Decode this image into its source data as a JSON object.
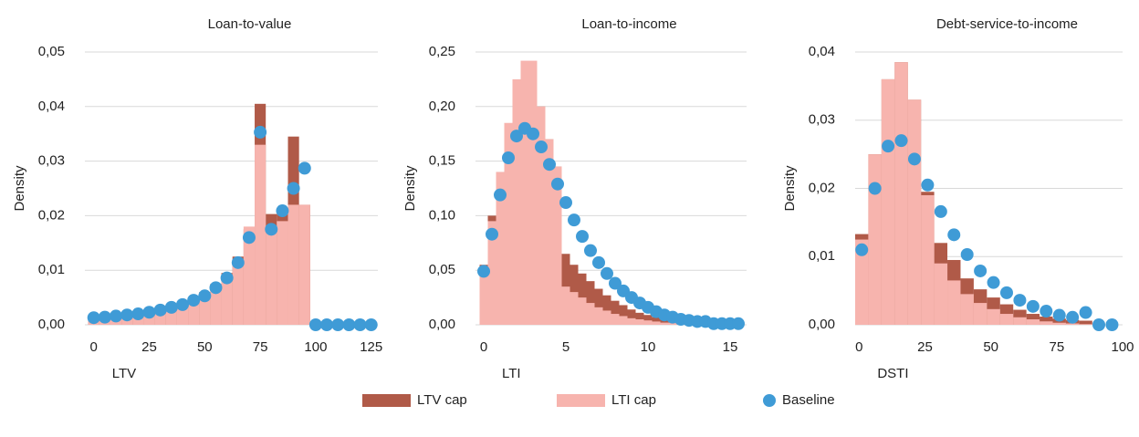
{
  "chart_data": [
    {
      "type": "histogram",
      "title": "Loan-to-value",
      "xlabel": "LTV",
      "ylabel": "Density",
      "bins": [
        -2.5,
        2.5,
        7.5,
        12.5,
        17.5,
        22.5,
        27.5,
        32.5,
        37.5,
        42.5,
        47.5,
        52.5,
        57.5,
        62.5,
        67.5,
        72.5,
        77.5,
        82.5,
        87.5,
        92.5,
        97.5,
        102.5,
        107.5,
        112.5,
        117.5,
        122.5,
        127.5
      ],
      "xlim": [
        -4,
        128
      ],
      "xticks": [
        0,
        25,
        50,
        75,
        100,
        125
      ],
      "ylim": [
        0,
        0.05
      ],
      "yticks": [
        {
          "value": 0,
          "label": "0,00"
        },
        {
          "value": 0.01,
          "label": "0,01"
        },
        {
          "value": 0.02,
          "label": "0,02"
        },
        {
          "value": 0.03,
          "label": "0,03"
        },
        {
          "value": 0.04,
          "label": "0,04"
        },
        {
          "value": 0.05,
          "label": "0,05"
        }
      ],
      "grid": true,
      "series": [
        {
          "name": "LTV cap",
          "color": "#b05a48",
          "values": [
            0.0013,
            0.0014,
            0.0016,
            0.0018,
            0.002,
            0.0023,
            0.0027,
            0.0033,
            0.004,
            0.005,
            0.006,
            0.0075,
            0.0095,
            0.0125,
            0.0175,
            0.0405,
            0.0203,
            0.021,
            0.0345,
            0.022,
            0,
            0,
            0,
            0,
            0,
            0
          ]
        },
        {
          "name": "LTI cap",
          "color": "#f7b4ae",
          "values": [
            0.0013,
            0.0014,
            0.0016,
            0.0018,
            0.002,
            0.0023,
            0.0027,
            0.0031,
            0.0035,
            0.0045,
            0.0058,
            0.0072,
            0.009,
            0.012,
            0.018,
            0.033,
            0.0175,
            0.019,
            0.022,
            0.022,
            0,
            0,
            0,
            0,
            0,
            0
          ]
        },
        {
          "name": "Baseline",
          "color": "#3f9bd6",
          "type": "scatter",
          "x": [
            0,
            5,
            10,
            15,
            20,
            25,
            30,
            35,
            40,
            45,
            50,
            55,
            60,
            65,
            70,
            75,
            80,
            85,
            90,
            95,
            100,
            105,
            110,
            115,
            120,
            125
          ],
          "values": [
            0.0013,
            0.0014,
            0.0016,
            0.0018,
            0.002,
            0.0023,
            0.0027,
            0.0032,
            0.0037,
            0.0045,
            0.0053,
            0.0068,
            0.0086,
            0.0114,
            0.016,
            0.0353,
            0.0175,
            0.0209,
            0.025,
            0.0287,
            0,
            0,
            0,
            0,
            0,
            0
          ]
        }
      ]
    },
    {
      "type": "histogram",
      "title": "Loan-to-income",
      "xlabel": "LTI",
      "ylabel": "Density",
      "bins": [
        -0.25,
        0.25,
        0.75,
        1.25,
        1.75,
        2.25,
        2.75,
        3.25,
        3.75,
        4.25,
        4.75,
        5.25,
        5.75,
        6.25,
        6.75,
        7.25,
        7.75,
        8.25,
        8.75,
        9.25,
        9.75,
        10.25,
        10.75,
        11.25,
        11.75,
        12.25,
        12.75,
        13.25,
        13.75,
        14.25,
        14.75,
        15.25,
        15.75
      ],
      "xlim": [
        -0.5,
        16
      ],
      "xticks": [
        0,
        5,
        10,
        15
      ],
      "ylim": [
        0,
        0.25
      ],
      "yticks": [
        {
          "value": 0,
          "label": "0,00"
        },
        {
          "value": 0.05,
          "label": "0,05"
        },
        {
          "value": 0.1,
          "label": "0,10"
        },
        {
          "value": 0.15,
          "label": "0,15"
        },
        {
          "value": 0.2,
          "label": "0,20"
        },
        {
          "value": 0.25,
          "label": "0,25"
        }
      ],
      "grid": true,
      "series": [
        {
          "name": "LTV cap",
          "color": "#b05a48",
          "values": [
            0.055,
            0.1,
            0.14,
            0.17,
            0.22,
            0.235,
            0.24,
            0.2,
            0.17,
            0.145,
            0.065,
            0.055,
            0.047,
            0.04,
            0.033,
            0.027,
            0.022,
            0.018,
            0.014,
            0.011,
            0.009,
            0.007,
            0.005,
            0.004,
            0.003,
            0.003,
            0.002,
            0.001,
            0.001,
            0.001,
            0.001,
            0.001
          ]
        },
        {
          "name": "LTI cap",
          "color": "#f7b4ae",
          "values": [
            0.045,
            0.095,
            0.14,
            0.185,
            0.225,
            0.242,
            0.242,
            0.2,
            0.17,
            0.145,
            0.035,
            0.03,
            0.025,
            0.02,
            0.016,
            0.013,
            0.01,
            0.008,
            0.006,
            0.005,
            0.004,
            0.003,
            0.002,
            0.002,
            0.001,
            0.001,
            0.001,
            0,
            0,
            0,
            0,
            0
          ]
        },
        {
          "name": "Baseline",
          "color": "#3f9bd6",
          "type": "scatter",
          "x": [
            0,
            0.5,
            1,
            1.5,
            2,
            2.5,
            3,
            3.5,
            4,
            4.5,
            5,
            5.5,
            6,
            6.5,
            7,
            7.5,
            8,
            8.5,
            9,
            9.5,
            10,
            10.5,
            11,
            11.5,
            12,
            12.5,
            13,
            13.5,
            14,
            14.5,
            15,
            15.5
          ],
          "values": [
            0.049,
            0.083,
            0.119,
            0.153,
            0.173,
            0.18,
            0.175,
            0.163,
            0.147,
            0.129,
            0.112,
            0.096,
            0.081,
            0.068,
            0.057,
            0.047,
            0.038,
            0.031,
            0.025,
            0.02,
            0.016,
            0.012,
            0.009,
            0.007,
            0.005,
            0.004,
            0.003,
            0.003,
            0.001,
            0.001,
            0.001,
            0.001
          ]
        }
      ]
    },
    {
      "type": "histogram",
      "title": "Debt-service-to-income",
      "xlabel": "DSTI",
      "ylabel": "Density",
      "bins": [
        -1.5,
        3.5,
        8.5,
        13.5,
        18.5,
        23.5,
        28.5,
        33.5,
        38.5,
        43.5,
        48.5,
        53.5,
        58.5,
        63.5,
        68.5,
        73.5,
        78.5,
        83.5,
        88.5,
        93.5,
        98.5
      ],
      "xlim": [
        -1.5,
        100
      ],
      "xticks": [
        0,
        25,
        50,
        75,
        100
      ],
      "ylim": [
        0,
        0.04
      ],
      "yticks": [
        {
          "value": 0,
          "label": "0,00"
        },
        {
          "value": 0.01,
          "label": "0,01"
        },
        {
          "value": 0.02,
          "label": "0,02"
        },
        {
          "value": 0.03,
          "label": "0,03"
        },
        {
          "value": 0.04,
          "label": "0,04"
        }
      ],
      "grid": true,
      "series": [
        {
          "name": "LTV cap",
          "color": "#b05a48",
          "values": [
            0.0133,
            0.025,
            0.036,
            0.0385,
            0.033,
            0.0195,
            0.012,
            0.0095,
            0.0068,
            0.0052,
            0.004,
            0.003,
            0.0022,
            0.0016,
            0.0012,
            0.0009,
            0.0007,
            0.0006,
            0,
            0
          ]
        },
        {
          "name": "LTI cap",
          "color": "#f7b4ae",
          "values": [
            0.0125,
            0.025,
            0.036,
            0.0385,
            0.033,
            0.019,
            0.009,
            0.0065,
            0.0045,
            0.0032,
            0.0023,
            0.0016,
            0.0011,
            0.0008,
            0.0005,
            0.0003,
            0.0002,
            0.0001,
            0,
            0
          ]
        },
        {
          "name": "Baseline",
          "color": "#3f9bd6",
          "type": "scatter",
          "x": [
            1,
            6,
            11,
            16,
            21,
            26,
            31,
            36,
            41,
            46,
            51,
            56,
            61,
            66,
            71,
            76,
            81,
            86,
            91,
            96
          ],
          "values": [
            0.011,
            0.02,
            0.0262,
            0.027,
            0.0243,
            0.0205,
            0.0166,
            0.0132,
            0.0103,
            0.0079,
            0.0062,
            0.0047,
            0.0036,
            0.0027,
            0.002,
            0.0014,
            0.0011,
            0.0018,
            0,
            0
          ]
        }
      ]
    }
  ]
}
